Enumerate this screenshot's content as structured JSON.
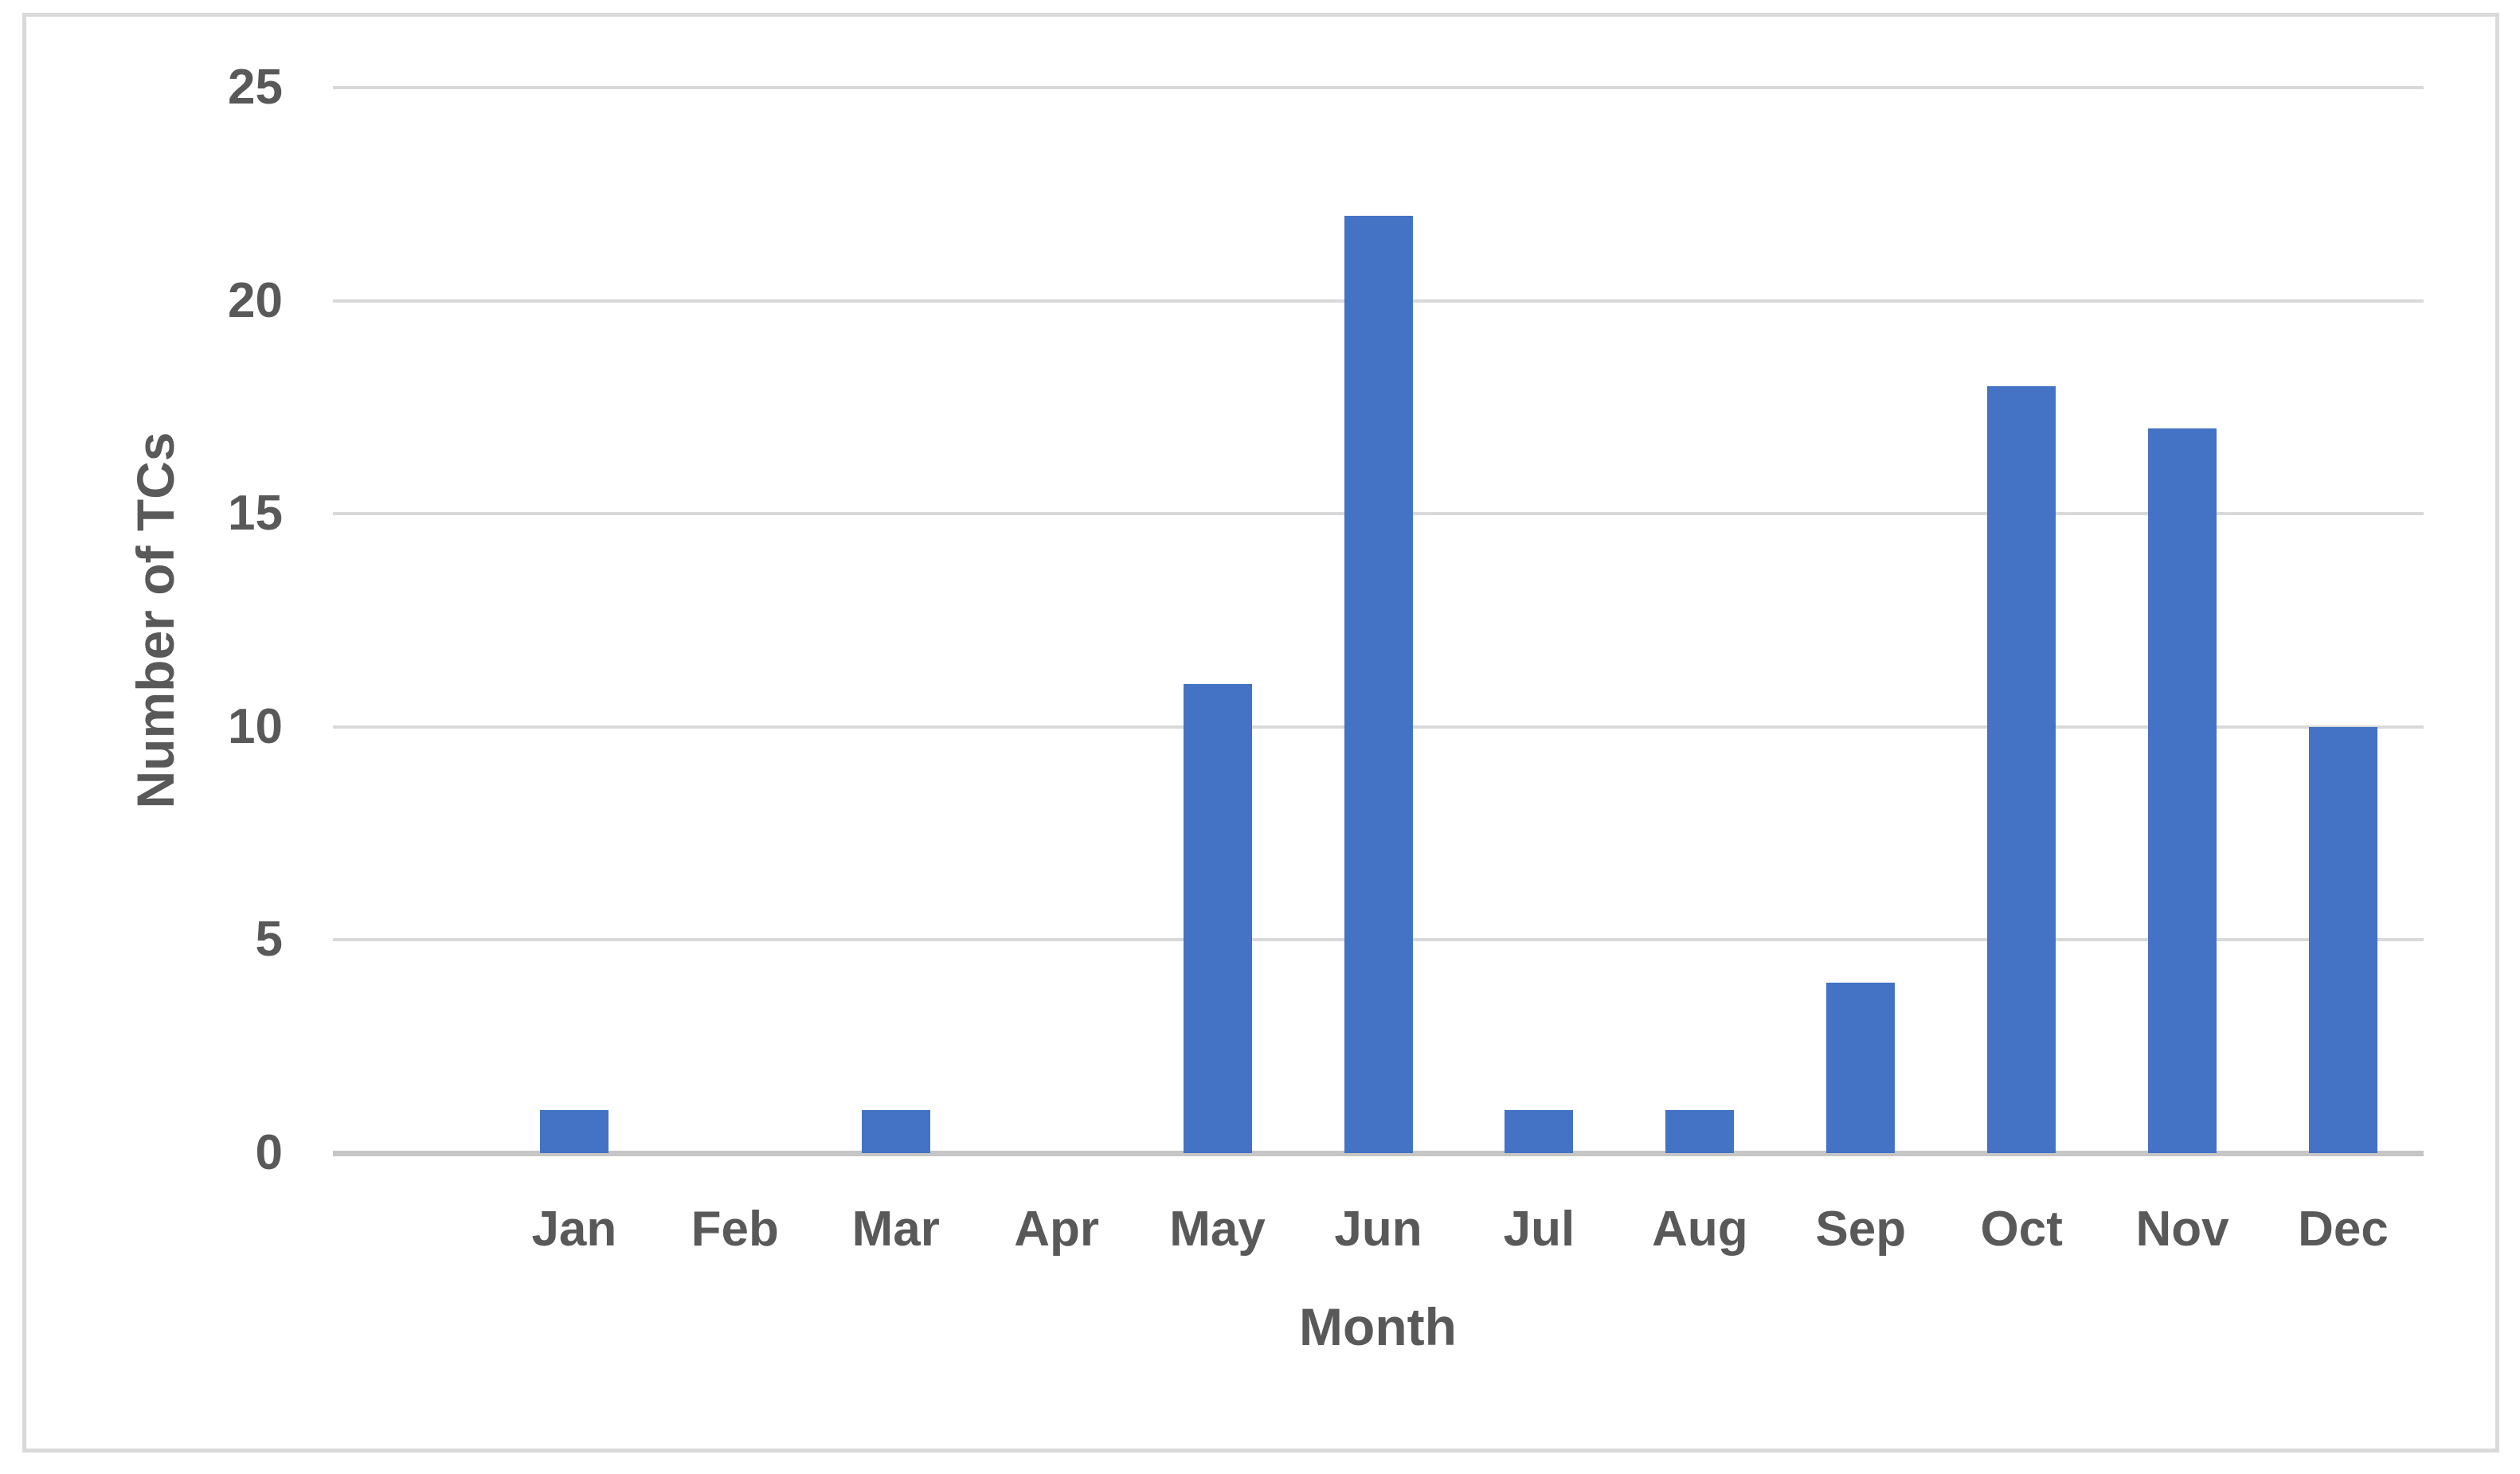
{
  "chart_data": {
    "type": "bar",
    "title": "",
    "categories": [
      "Jan",
      "Feb",
      "Mar",
      "Apr",
      "May",
      "Jun",
      "Jul",
      "Aug",
      "Sep",
      "Oct",
      "Nov",
      "Dec"
    ],
    "values": [
      1,
      0,
      1,
      0,
      11,
      22,
      1,
      1,
      4,
      18,
      17,
      10
    ],
    "xlabel": "Month",
    "ylabel": "Number of TCs",
    "ylim": [
      0,
      25
    ],
    "yticks": [
      0,
      5,
      10,
      15,
      20,
      25
    ],
    "grid": true,
    "legend_position": "none",
    "colors": {
      "bar": "#4472C4",
      "gridline": "#D9D9D9",
      "axis_line": "#C6C6C6",
      "text": "#595959",
      "frame_border": "#D9D9D9",
      "background": "#FFFFFF"
    }
  }
}
